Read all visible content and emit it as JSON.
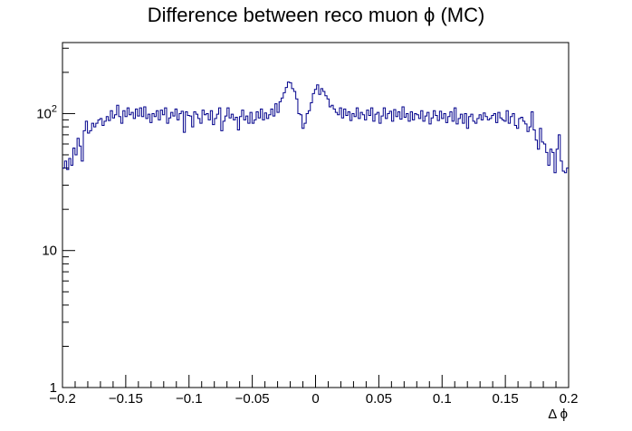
{
  "chart_data": {
    "type": "histogram",
    "title": "Difference between reco muon ϕ (MC)",
    "xlabel": "Δ ϕ",
    "ylabel": "",
    "xlim": [
      -0.2,
      0.2
    ],
    "ylim": [
      1,
      330
    ],
    "y_scale": "log",
    "grid": false,
    "legend": "none",
    "line_color": "#00008b",
    "x_ticks": [
      {
        "value": -0.2,
        "label": "−0.2"
      },
      {
        "value": -0.15,
        "label": "−0.15"
      },
      {
        "value": -0.1,
        "label": "−0.1"
      },
      {
        "value": -0.05,
        "label": "−0.05"
      },
      {
        "value": 0,
        "label": "0"
      },
      {
        "value": 0.05,
        "label": "0.05"
      },
      {
        "value": 0.1,
        "label": "0.1"
      },
      {
        "value": 0.15,
        "label": "0.15"
      },
      {
        "value": 0.2,
        "label": "0.2"
      }
    ],
    "y_ticks": [
      {
        "value": 1,
        "label": "1"
      },
      {
        "value": 10,
        "label": "10"
      },
      {
        "value": 100,
        "label": "10²"
      }
    ],
    "bins": {
      "min": -0.2,
      "max": 0.2,
      "counts": [
        40,
        45,
        39,
        47,
        42,
        56,
        50,
        66,
        58,
        45,
        75,
        88,
        72,
        75,
        85,
        80,
        85,
        90,
        92,
        82,
        88,
        95,
        89,
        105,
        93,
        98,
        115,
        95,
        85,
        105,
        95,
        110,
        98,
        102,
        92,
        108,
        96,
        110,
        95,
        112,
        92,
        99,
        86,
        100,
        95,
        105,
        90,
        106,
        98,
        110,
        85,
        93,
        102,
        96,
        108,
        90,
        100,
        104,
        73,
        103,
        97,
        96,
        80,
        103,
        99,
        92,
        85,
        106,
        98,
        100,
        90,
        105,
        83,
        92,
        99,
        110,
        75,
        88,
        96,
        110,
        93,
        99,
        90,
        94,
        76,
        95,
        106,
        90,
        96,
        85,
        102,
        85,
        90,
        103,
        93,
        108,
        90,
        101,
        92,
        98,
        108,
        96,
        118,
        102,
        122,
        130,
        142,
        155,
        170,
        168,
        152,
        145,
        128,
        100,
        98,
        78,
        85,
        100,
        105,
        120,
        140,
        150,
        162,
        138,
        152,
        145,
        135,
        128,
        112,
        115,
        108,
        102,
        98,
        110,
        93,
        108,
        97,
        103,
        89,
        100,
        95,
        110,
        92,
        102,
        98,
        90,
        106,
        97,
        110,
        88,
        99,
        102,
        85,
        96,
        110,
        92,
        100,
        104,
        88,
        107,
        95,
        103,
        91,
        112,
        94,
        100,
        88,
        103,
        90,
        100,
        98,
        92,
        105,
        88,
        96,
        102,
        84,
        93,
        105,
        97,
        89,
        104,
        92,
        100,
        86,
        95,
        103,
        88,
        110,
        84,
        92,
        99,
        85,
        100,
        78,
        95,
        99,
        88,
        85,
        92,
        98,
        90,
        101,
        95,
        90,
        92,
        97,
        100,
        86,
        102,
        93,
        90,
        88,
        105,
        85,
        95,
        100,
        82,
        78,
        92,
        94,
        88,
        84,
        74,
        80,
        103,
        76,
        64,
        55,
        78,
        62,
        60,
        52,
        42,
        55,
        52,
        37,
        55,
        70,
        45,
        38,
        37,
        40
      ]
    }
  }
}
